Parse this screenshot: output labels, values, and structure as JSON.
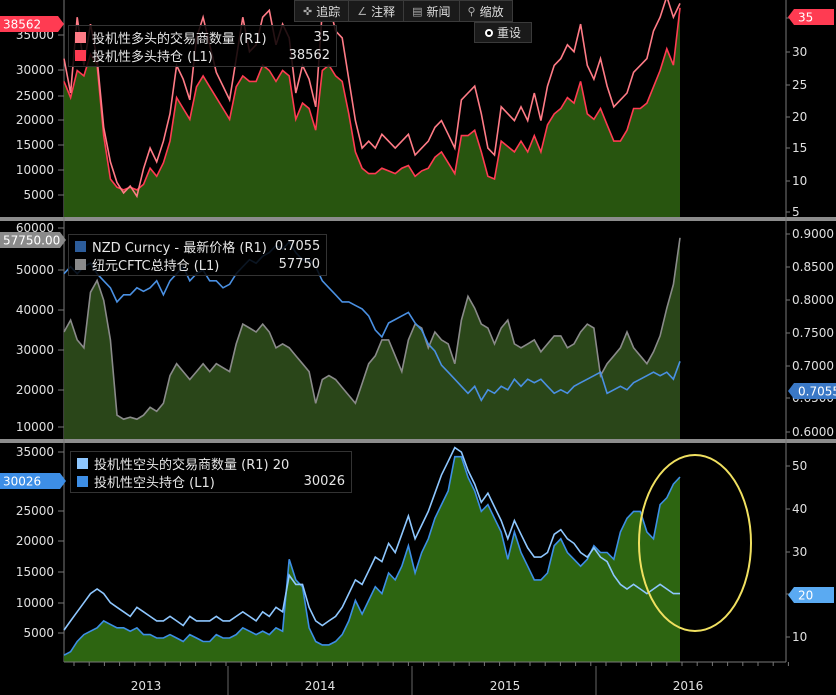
{
  "toolbar": {
    "track": {
      "label": "追踪",
      "icon": "crosshair-icon"
    },
    "annotate": {
      "label": "注释",
      "icon": "pencil-icon"
    },
    "news": {
      "label": "新闻",
      "icon": "newspaper-icon"
    },
    "zoom": {
      "label": "缩放",
      "icon": "magnifier-icon"
    },
    "reset": {
      "label": "重设",
      "icon": "radio-dot-icon"
    }
  },
  "colors": {
    "red_line": "#ff3b52",
    "pink_line": "#ff7b86",
    "gray_line": "#8a8a8a",
    "nzd_line": "#4a90e2",
    "blue_line": "#3d8ee6",
    "light_blue_line": "#8ec7ff",
    "area_fill": "#2f6a12",
    "highlight_ellipse": "#f0e060"
  },
  "chart_data": [
    {
      "type": "area",
      "legend": [
        {
          "label": "投机性多头的交易商数量 (R1)",
          "value": "35",
          "color": "#ff7b86"
        },
        {
          "label": "投机性多头持仓 (L1)",
          "value": "38562",
          "color": "#ff3b52"
        }
      ],
      "left_ticks": [
        "35000",
        "30000",
        "25000",
        "20000",
        "15000",
        "10000",
        "5000"
      ],
      "right_ticks": [
        "35",
        "30",
        "25",
        "20",
        "15",
        "10",
        "5"
      ],
      "ylim_left": [
        0,
        40000
      ],
      "ylim_right": [
        4,
        35.5
      ],
      "left_badge": "38562",
      "right_badge": "35",
      "series": [
        {
          "name": "投机性多头持仓 (L1)",
          "axis": "left",
          "values": [
            25000,
            22000,
            27000,
            26000,
            30000,
            28000,
            15000,
            7000,
            5500,
            5000,
            5500,
            5000,
            6000,
            9000,
            7500,
            10000,
            14000,
            22000,
            20000,
            18000,
            24000,
            26000,
            24000,
            22000,
            20000,
            18000,
            24000,
            26000,
            25000,
            25000,
            28000,
            27000,
            25000,
            27000,
            26000,
            18000,
            21000,
            20000,
            16000,
            27000,
            28000,
            26000,
            25000,
            19000,
            12000,
            9000,
            8000,
            8000,
            9000,
            8500,
            8000,
            9000,
            9500,
            7500,
            8500,
            9000,
            11000,
            12000,
            10000,
            8000,
            15000,
            15000,
            16000,
            12000,
            7500,
            7000,
            14000,
            13000,
            12000,
            14000,
            12000,
            15000,
            12000,
            17000,
            19000,
            20000,
            22000,
            21000,
            25000,
            19000,
            18000,
            20000,
            17000,
            14000,
            14000,
            16000,
            20000,
            20000,
            21000,
            24000,
            27000,
            31000,
            28000,
            38562
          ]
        },
        {
          "name": "投机性多头的交易商数量 (R1)",
          "axis": "right",
          "values": [
            27,
            22,
            33,
            26,
            32,
            27,
            17,
            12,
            9,
            7.5,
            8.5,
            7,
            11,
            14,
            12,
            15,
            19,
            26,
            24,
            21,
            30,
            33,
            29,
            25,
            23,
            21,
            27,
            33,
            28,
            29,
            33,
            34,
            29,
            32,
            30,
            22,
            26,
            24,
            20,
            34,
            35,
            31,
            30,
            24,
            18,
            14,
            15,
            14,
            16,
            15,
            14,
            15,
            16,
            13,
            14,
            15,
            17,
            18,
            16,
            14,
            21,
            22,
            23,
            19,
            14,
            13,
            20,
            19,
            18,
            20,
            18,
            22,
            18,
            23,
            26,
            27,
            29,
            28,
            32,
            26,
            24,
            27,
            23,
            20,
            21,
            22,
            25,
            26,
            27,
            31,
            33,
            36,
            33,
            35
          ]
        }
      ]
    },
    {
      "type": "area",
      "legend": [
        {
          "label": "NZD Curncy - 最新价格 (R1)",
          "value": "0.7055",
          "color": "#4a90e2"
        },
        {
          "label": "纽元CFTC总持仓 (L1)",
          "value": "57750",
          "color": "#8a8a8a"
        }
      ],
      "left_ticks": [
        "60000",
        "50000",
        "40000",
        "30000",
        "20000",
        "10000"
      ],
      "right_ticks": [
        "0.9000",
        "0.8500",
        "0.8000",
        "0.7500",
        "0.7000",
        "0.6500",
        "0.6000"
      ],
      "ylim_left": [
        7000,
        62000
      ],
      "ylim_right": [
        0.595,
        0.905
      ],
      "left_badge": "57750.00",
      "right_badge": "0.7055",
      "series": [
        {
          "name": "纽元CFTC总持仓 (L1)",
          "axis": "left",
          "values": [
            34000,
            37000,
            32000,
            30000,
            44000,
            47000,
            42000,
            32000,
            13000,
            12000,
            12500,
            12000,
            13000,
            15000,
            14000,
            16000,
            23000,
            26000,
            24000,
            22000,
            24000,
            26000,
            24000,
            26000,
            25000,
            24000,
            31000,
            36000,
            35000,
            34000,
            36000,
            34000,
            30000,
            31000,
            30000,
            28000,
            26000,
            24000,
            16000,
            22000,
            23000,
            22000,
            20000,
            18000,
            16000,
            21000,
            26000,
            28000,
            32000,
            32000,
            28000,
            24000,
            32000,
            36000,
            35000,
            30000,
            34000,
            32000,
            31000,
            26000,
            37000,
            43000,
            40000,
            36000,
            35000,
            31000,
            35000,
            37000,
            31000,
            30000,
            31000,
            32000,
            29000,
            31000,
            33000,
            33000,
            30000,
            31000,
            34000,
            36000,
            35000,
            23000,
            26000,
            28000,
            30000,
            34000,
            30000,
            28000,
            26000,
            29000,
            33000,
            40000,
            46000,
            57750
          ]
        },
        {
          "name": "NZD Curncy - 最新价格 (R1)",
          "axis": "right",
          "values": [
            0.83,
            0.84,
            0.83,
            0.84,
            0.845,
            0.83,
            0.82,
            0.81,
            0.79,
            0.8,
            0.8,
            0.81,
            0.805,
            0.81,
            0.82,
            0.8,
            0.82,
            0.83,
            0.84,
            0.82,
            0.83,
            0.835,
            0.82,
            0.82,
            0.81,
            0.815,
            0.83,
            0.84,
            0.85,
            0.845,
            0.855,
            0.86,
            0.87,
            0.865,
            0.875,
            0.86,
            0.85,
            0.85,
            0.84,
            0.82,
            0.81,
            0.8,
            0.79,
            0.79,
            0.785,
            0.78,
            0.77,
            0.75,
            0.74,
            0.76,
            0.765,
            0.77,
            0.775,
            0.76,
            0.75,
            0.73,
            0.72,
            0.7,
            0.69,
            0.68,
            0.67,
            0.66,
            0.67,
            0.65,
            0.665,
            0.66,
            0.67,
            0.665,
            0.68,
            0.67,
            0.68,
            0.675,
            0.68,
            0.67,
            0.66,
            0.665,
            0.66,
            0.67,
            0.675,
            0.68,
            0.685,
            0.69,
            0.66,
            0.665,
            0.67,
            0.665,
            0.675,
            0.68,
            0.685,
            0.69,
            0.685,
            0.69,
            0.68,
            0.7055
          ]
        }
      ]
    },
    {
      "type": "area",
      "legend": [
        {
          "label": "投机性空头的交易商数量 (R1) 20",
          "value": "",
          "color": "#8ec7ff"
        },
        {
          "label": "投机性空头持仓 (L1)",
          "value": "30026",
          "color": "#3d8ee6"
        }
      ],
      "left_ticks": [
        "35000",
        "30000",
        "25000",
        "20000",
        "15000",
        "10000",
        "5000"
      ],
      "right_ticks": [
        "50",
        "40",
        "30",
        "20",
        "10"
      ],
      "ylim_left": [
        3000,
        35000
      ],
      "ylim_right": [
        5,
        53
      ],
      "left_badge": "30026",
      "right_badge": "20",
      "series": [
        {
          "name": "投机性空头持仓 (L1)",
          "axis": "left",
          "values": [
            4000,
            4500,
            6000,
            7000,
            7500,
            8000,
            9000,
            8500,
            8000,
            8000,
            7500,
            8000,
            7000,
            7000,
            6500,
            6500,
            7000,
            6500,
            6000,
            7000,
            6500,
            6000,
            6000,
            7000,
            6500,
            6500,
            7000,
            8000,
            7500,
            7000,
            7500,
            7000,
            8000,
            7500,
            18000,
            15000,
            14000,
            8000,
            6000,
            5500,
            5500,
            6000,
            7000,
            9000,
            12000,
            10000,
            12000,
            14000,
            13000,
            16000,
            15000,
            17000,
            20000,
            16000,
            19000,
            21000,
            24000,
            26000,
            28000,
            33000,
            33000,
            30000,
            28000,
            25000,
            26000,
            24000,
            22000,
            18000,
            22000,
            19000,
            17000,
            15000,
            15000,
            16000,
            20000,
            21000,
            19000,
            18000,
            17000,
            18000,
            20000,
            19000,
            19000,
            18000,
            22000,
            24000,
            25000,
            25000,
            22000,
            21000,
            26000,
            27000,
            29000,
            30026
          ]
        },
        {
          "name": "投机性空头的交易商数量 (R1)",
          "axis": "right",
          "values": [
            12,
            14,
            16,
            18,
            20,
            21,
            20,
            18,
            17,
            16,
            15,
            17,
            16,
            15,
            14,
            14,
            15,
            14,
            13,
            15,
            14,
            14,
            14,
            15,
            14,
            14,
            15,
            16,
            15,
            14,
            16,
            15,
            17,
            16,
            24,
            22,
            22,
            17,
            14,
            13,
            14,
            15,
            17,
            20,
            23,
            22,
            25,
            28,
            27,
            31,
            29,
            33,
            37,
            32,
            35,
            38,
            42,
            46,
            49,
            52,
            51,
            47,
            44,
            40,
            42,
            39,
            36,
            32,
            36,
            33,
            30,
            28,
            28,
            29,
            33,
            34,
            32,
            31,
            29,
            28,
            30,
            28,
            27,
            24,
            22,
            21,
            22,
            21,
            20,
            21,
            22,
            21,
            20,
            20
          ]
        }
      ]
    }
  ],
  "x_labels": [
    "2013",
    "2014",
    "2015",
    "2016"
  ]
}
